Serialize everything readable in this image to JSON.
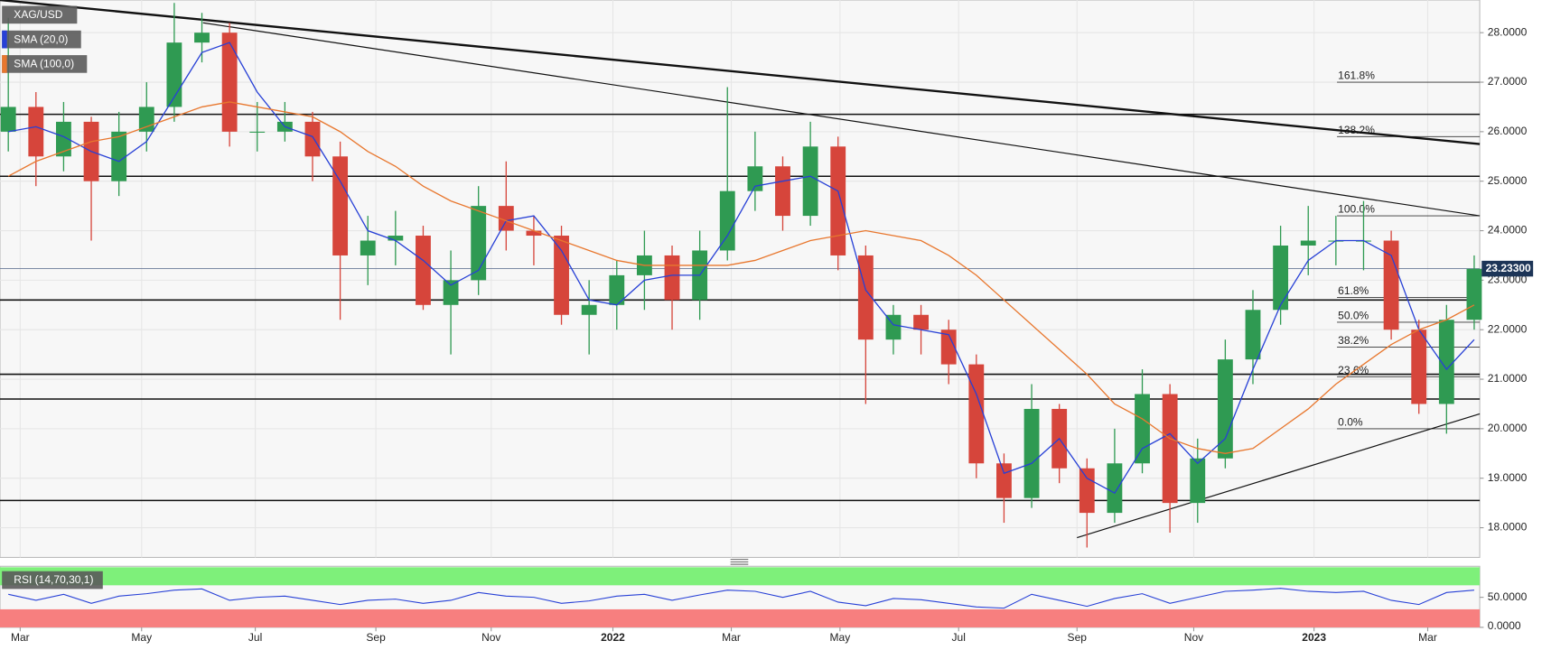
{
  "chart_data": {
    "type": "candlestick",
    "title": "XAG/USD",
    "up_color": "#2f9a52",
    "down_color": "#d6453b",
    "open": [
      26.0,
      26.5,
      25.5,
      26.2,
      25.0,
      26.0,
      26.5,
      27.8,
      28.0,
      26.0,
      26.0,
      26.2,
      25.5,
      23.5,
      23.8,
      23.9,
      22.5,
      23.0,
      24.5,
      24.0,
      23.9,
      22.3,
      22.5,
      23.1,
      23.5,
      22.6,
      23.6,
      24.8,
      25.3,
      24.3,
      25.7,
      23.5,
      21.8,
      22.3,
      22.0,
      21.3,
      19.3,
      18.6,
      20.4,
      19.2,
      18.3,
      19.3,
      20.7,
      18.5,
      19.4,
      21.4,
      22.4,
      23.7,
      23.8,
      23.8,
      23.8,
      22.0,
      20.5,
      22.2
    ],
    "high": [
      28.3,
      26.8,
      26.6,
      26.3,
      26.4,
      27.0,
      28.6,
      28.4,
      28.2,
      26.6,
      26.6,
      26.4,
      25.8,
      24.3,
      24.4,
      24.1,
      23.6,
      24.9,
      25.4,
      24.3,
      24.1,
      23.0,
      23.4,
      24.0,
      23.7,
      24.0,
      26.9,
      26.0,
      25.5,
      26.2,
      25.9,
      23.7,
      22.5,
      22.5,
      22.2,
      21.5,
      19.5,
      20.9,
      20.5,
      19.4,
      20.0,
      21.2,
      20.9,
      19.8,
      21.8,
      22.8,
      24.1,
      24.5,
      24.3,
      24.6,
      24.0,
      22.2,
      22.5,
      23.5
    ],
    "low": [
      25.6,
      24.9,
      25.2,
      23.8,
      24.7,
      25.6,
      26.2,
      27.4,
      25.7,
      25.6,
      25.8,
      25.0,
      22.2,
      22.9,
      23.3,
      22.4,
      21.5,
      22.7,
      23.6,
      23.3,
      22.1,
      21.5,
      22.0,
      22.4,
      22.0,
      22.2,
      23.4,
      24.4,
      24.0,
      24.1,
      23.2,
      20.5,
      21.5,
      21.5,
      20.9,
      19.0,
      18.1,
      18.4,
      18.9,
      17.6,
      18.1,
      19.1,
      17.9,
      18.1,
      19.2,
      20.9,
      22.1,
      23.1,
      23.3,
      23.2,
      21.8,
      20.3,
      19.9,
      22.0
    ],
    "close": [
      26.5,
      25.5,
      26.2,
      25.0,
      26.0,
      26.5,
      27.8,
      28.0,
      26.0,
      26.0,
      26.2,
      25.5,
      23.5,
      23.8,
      23.9,
      22.5,
      23.0,
      24.5,
      24.0,
      23.9,
      22.3,
      22.5,
      23.1,
      23.5,
      22.6,
      23.6,
      24.8,
      25.3,
      24.3,
      25.7,
      23.5,
      21.8,
      22.3,
      22.0,
      21.3,
      19.3,
      18.6,
      20.4,
      19.2,
      18.3,
      19.3,
      20.7,
      18.5,
      19.4,
      21.4,
      22.4,
      23.7,
      23.8,
      23.8,
      23.8,
      22.0,
      20.5,
      22.2,
      23.23
    ],
    "series": [
      {
        "name": "SMA (20,0)",
        "color": "#2740d6",
        "values": [
          26.0,
          26.1,
          25.9,
          25.6,
          25.4,
          25.8,
          26.7,
          27.6,
          27.8,
          26.8,
          26.1,
          25.9,
          25.0,
          24.0,
          23.8,
          23.4,
          22.9,
          23.2,
          24.2,
          24.3,
          23.6,
          22.6,
          22.5,
          23.0,
          23.1,
          23.1,
          23.9,
          24.9,
          25.0,
          25.1,
          24.8,
          22.8,
          22.1,
          22.0,
          21.9,
          20.7,
          19.1,
          19.3,
          19.8,
          19.0,
          18.7,
          19.6,
          19.9,
          19.3,
          19.8,
          21.2,
          22.5,
          23.4,
          23.8,
          23.8,
          23.5,
          22.0,
          21.2,
          21.8
        ]
      },
      {
        "name": "SMA (100,0)",
        "color": "#e8772e",
        "values": [
          25.1,
          25.4,
          25.6,
          25.8,
          25.9,
          26.1,
          26.3,
          26.5,
          26.6,
          26.5,
          26.4,
          26.3,
          26.0,
          25.6,
          25.3,
          24.9,
          24.6,
          24.4,
          24.2,
          24.0,
          23.8,
          23.6,
          23.4,
          23.3,
          23.3,
          23.3,
          23.3,
          23.4,
          23.6,
          23.8,
          23.9,
          24.0,
          23.9,
          23.8,
          23.5,
          23.1,
          22.6,
          22.1,
          21.6,
          21.1,
          20.5,
          20.2,
          19.8,
          19.6,
          19.5,
          19.6,
          20.0,
          20.4,
          20.9,
          21.3,
          21.7,
          22.0,
          22.2,
          22.5
        ]
      }
    ],
    "xlim": [
      -0.3,
      53.2
    ],
    "xticks": [
      {
        "value": 0.43,
        "label": "Mar"
      },
      {
        "value": 4.82,
        "label": "May"
      },
      {
        "value": 8.93,
        "label": "Jul"
      },
      {
        "value": 13.29,
        "label": "Sep"
      },
      {
        "value": 17.46,
        "label": "Nov"
      },
      {
        "value": 21.86,
        "label": "2022"
      },
      {
        "value": 26.14,
        "label": "Mar"
      },
      {
        "value": 30.07,
        "label": "May"
      },
      {
        "value": 34.36,
        "label": "Jul"
      },
      {
        "value": 38.64,
        "label": "Sep"
      },
      {
        "value": 42.86,
        "label": "Nov"
      },
      {
        "value": 47.21,
        "label": "2023"
      },
      {
        "value": 51.32,
        "label": "Mar"
      }
    ],
    "ylim": [
      17.4,
      28.66
    ],
    "yticks": [
      {
        "value": 18,
        "label": "18.0000"
      },
      {
        "value": 19,
        "label": "19.0000"
      },
      {
        "value": 20,
        "label": "20.0000"
      },
      {
        "value": 21,
        "label": "21.0000"
      },
      {
        "value": 22,
        "label": "22.0000"
      },
      {
        "value": 23,
        "label": "23.0000"
      },
      {
        "value": 24,
        "label": "24.0000"
      },
      {
        "value": 25,
        "label": "25.0000"
      },
      {
        "value": 26,
        "label": "26.0000"
      },
      {
        "value": 27,
        "label": "27.0000"
      },
      {
        "value": 28,
        "label": "28.0000"
      }
    ],
    "grid": true,
    "last_price": 23.233,
    "last_price_label": "23.23300",
    "horizontal_levels": [
      26.35,
      25.1,
      22.6,
      21.1,
      20.6,
      18.55
    ],
    "trendlines": [
      {
        "x": [
          -0.3,
          53.2
        ],
        "y": [
          28.66,
          25.75
        ]
      },
      {
        "x": [
          7.04,
          53.2
        ],
        "y": [
          28.2,
          24.3
        ]
      },
      {
        "x": [
          38.64,
          53.2
        ],
        "y": [
          17.8,
          20.3
        ]
      }
    ],
    "fibonacci": {
      "x": [
        48.04,
        53.2
      ],
      "levels": [
        {
          "value": 27.0,
          "label": "161.8%"
        },
        {
          "value": 25.9,
          "label": "138.2%"
        },
        {
          "value": 24.3,
          "label": "100.0%"
        },
        {
          "value": 22.65,
          "label": "61.8%"
        },
        {
          "value": 22.15,
          "label": "50.0%"
        },
        {
          "value": 21.65,
          "label": "38.2%"
        },
        {
          "value": 21.05,
          "label": "23.6%"
        },
        {
          "value": 20.0,
          "label": "0.0%"
        }
      ]
    },
    "rsi": {
      "name": "RSI (14,70,30,1)",
      "color": "#2740d6",
      "values": [
        55,
        45,
        55,
        40,
        52,
        56,
        62,
        64,
        45,
        50,
        52,
        45,
        38,
        45,
        47,
        40,
        45,
        58,
        52,
        50,
        40,
        44,
        52,
        55,
        45,
        54,
        62,
        60,
        50,
        60,
        42,
        36,
        48,
        46,
        40,
        34,
        32,
        55,
        45,
        35,
        48,
        56,
        40,
        50,
        60,
        62,
        65,
        60,
        58,
        60,
        45,
        38,
        58,
        62
      ],
      "ylim": [
        0,
        100
      ],
      "overbought": 70,
      "oversold": 30,
      "yticks": [
        {
          "value": 50,
          "label": "50.0000"
        },
        {
          "value": 0,
          "label": "0.0000"
        }
      ]
    }
  }
}
